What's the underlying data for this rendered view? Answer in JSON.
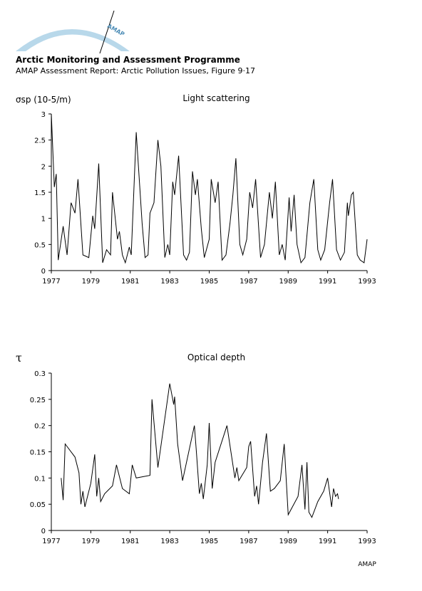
{
  "header": {
    "logo_text": "AMAP",
    "title": "Arctic Monitoring and Assessment Programme",
    "subtitle": "AMAP Assessment Report: Arctic Pollution Issues, Figure 9·17"
  },
  "footer": "AMAP",
  "chart_data": [
    {
      "type": "line",
      "title": "Light scattering",
      "y_label": "σsp (10-5/m)",
      "x": [
        1977.0,
        1977.15,
        1977.25,
        1977.35,
        1977.6,
        1977.8,
        1978.0,
        1978.2,
        1978.35,
        1978.6,
        1978.9,
        1979.1,
        1979.2,
        1979.4,
        1979.6,
        1979.8,
        1980.0,
        1980.1,
        1980.35,
        1980.45,
        1980.6,
        1980.75,
        1980.95,
        1981.05,
        1981.3,
        1981.6,
        1981.75,
        1981.9,
        1982.0,
        1982.2,
        1982.4,
        1982.55,
        1982.75,
        1982.9,
        1983.0,
        1983.15,
        1983.25,
        1983.45,
        1983.7,
        1983.85,
        1984.0,
        1984.15,
        1984.3,
        1984.4,
        1984.6,
        1984.75,
        1985.0,
        1985.1,
        1985.3,
        1985.45,
        1985.65,
        1985.85,
        1986.05,
        1986.2,
        1986.35,
        1986.55,
        1986.7,
        1986.9,
        1987.05,
        1987.2,
        1987.35,
        1987.6,
        1987.8,
        1988.05,
        1988.2,
        1988.35,
        1988.55,
        1988.7,
        1988.85,
        1989.05,
        1989.15,
        1989.3,
        1989.45,
        1989.65,
        1989.85,
        1990.1,
        1990.3,
        1990.5,
        1990.65,
        1990.85,
        1991.1,
        1991.25,
        1991.45,
        1991.65,
        1991.85,
        1992.0,
        1992.05,
        1992.2,
        1992.3,
        1992.5,
        1992.65,
        1992.85,
        1993.0
      ],
      "series": [
        {
          "color": "#000000",
          "values": [
            3.0,
            1.6,
            1.85,
            0.2,
            0.85,
            0.3,
            1.3,
            1.1,
            1.75,
            0.3,
            0.25,
            1.05,
            0.8,
            2.05,
            0.15,
            0.4,
            0.3,
            1.5,
            0.6,
            0.75,
            0.3,
            0.15,
            0.45,
            0.3,
            2.65,
            0.9,
            0.25,
            0.3,
            1.1,
            1.3,
            2.5,
            2.0,
            0.25,
            0.5,
            0.3,
            1.7,
            1.45,
            2.2,
            0.3,
            0.2,
            0.35,
            1.9,
            1.45,
            1.75,
            0.8,
            0.25,
            0.6,
            1.75,
            1.3,
            1.7,
            0.2,
            0.3,
            0.9,
            1.45,
            2.15,
            0.5,
            0.3,
            0.6,
            1.5,
            1.2,
            1.75,
            0.25,
            0.5,
            1.5,
            1.0,
            1.7,
            0.3,
            0.5,
            0.2,
            1.4,
            0.75,
            1.45,
            0.5,
            0.15,
            0.25,
            1.3,
            1.75,
            0.4,
            0.2,
            0.4,
            1.3,
            1.75,
            0.4,
            0.2,
            0.35,
            1.3,
            1.05,
            1.45,
            1.5,
            0.3,
            0.2,
            0.15,
            0.6
          ]
        }
      ],
      "xlim": [
        1977,
        1993
      ],
      "xticks": [
        1977,
        1979,
        1981,
        1983,
        1985,
        1987,
        1989,
        1991,
        1993
      ],
      "ylim": [
        0,
        3
      ],
      "yticks": [
        0,
        0.5,
        1,
        1.5,
        2,
        2.5,
        3
      ]
    },
    {
      "type": "line",
      "title": "Optical depth",
      "y_label": "τ",
      "x": [
        1977.5,
        1977.6,
        1977.7,
        1978.2,
        1978.4,
        1978.5,
        1978.6,
        1978.7,
        1979.0,
        1979.2,
        1979.3,
        1979.4,
        1979.5,
        1979.7,
        1980.1,
        1980.3,
        1980.6,
        1980.95,
        1981.1,
        1981.3,
        1982.0,
        1982.1,
        1982.4,
        1983.0,
        1983.2,
        1983.25,
        1983.4,
        1983.65,
        1984.25,
        1984.35,
        1984.5,
        1984.6,
        1984.7,
        1984.9,
        1985.0,
        1985.15,
        1985.3,
        1985.9,
        1986.3,
        1986.4,
        1986.5,
        1986.9,
        1987.0,
        1987.1,
        1987.3,
        1987.4,
        1987.5,
        1987.7,
        1987.9,
        1988.1,
        1988.3,
        1988.6,
        1988.8,
        1989.0,
        1989.5,
        1989.7,
        1989.85,
        1989.95,
        1990.05,
        1990.2,
        1990.5,
        1990.8,
        1991.0,
        1991.2,
        1991.3,
        1991.4,
        1991.5,
        1991.55
      ],
      "series": [
        {
          "color": "#000000",
          "values": [
            0.1,
            0.058,
            0.165,
            0.14,
            0.11,
            0.05,
            0.075,
            0.045,
            0.09,
            0.145,
            0.065,
            0.1,
            0.055,
            0.07,
            0.085,
            0.125,
            0.08,
            0.07,
            0.125,
            0.1,
            0.105,
            0.25,
            0.12,
            0.28,
            0.24,
            0.255,
            0.165,
            0.095,
            0.2,
            0.15,
            0.07,
            0.09,
            0.06,
            0.125,
            0.205,
            0.08,
            0.13,
            0.2,
            0.1,
            0.12,
            0.095,
            0.12,
            0.16,
            0.17,
            0.065,
            0.085,
            0.05,
            0.13,
            0.185,
            0.075,
            0.08,
            0.095,
            0.165,
            0.03,
            0.065,
            0.125,
            0.04,
            0.13,
            0.035,
            0.025,
            0.055,
            0.075,
            0.1,
            0.045,
            0.08,
            0.065,
            0.07,
            0.06
          ]
        }
      ],
      "xlim": [
        1977,
        1993
      ],
      "xticks": [
        1977,
        1979,
        1981,
        1983,
        1985,
        1987,
        1989,
        1991,
        1993
      ],
      "ylim": [
        0,
        0.3
      ],
      "yticks": [
        0,
        0.05,
        0.1,
        0.15,
        0.2,
        0.25,
        0.3
      ]
    }
  ]
}
